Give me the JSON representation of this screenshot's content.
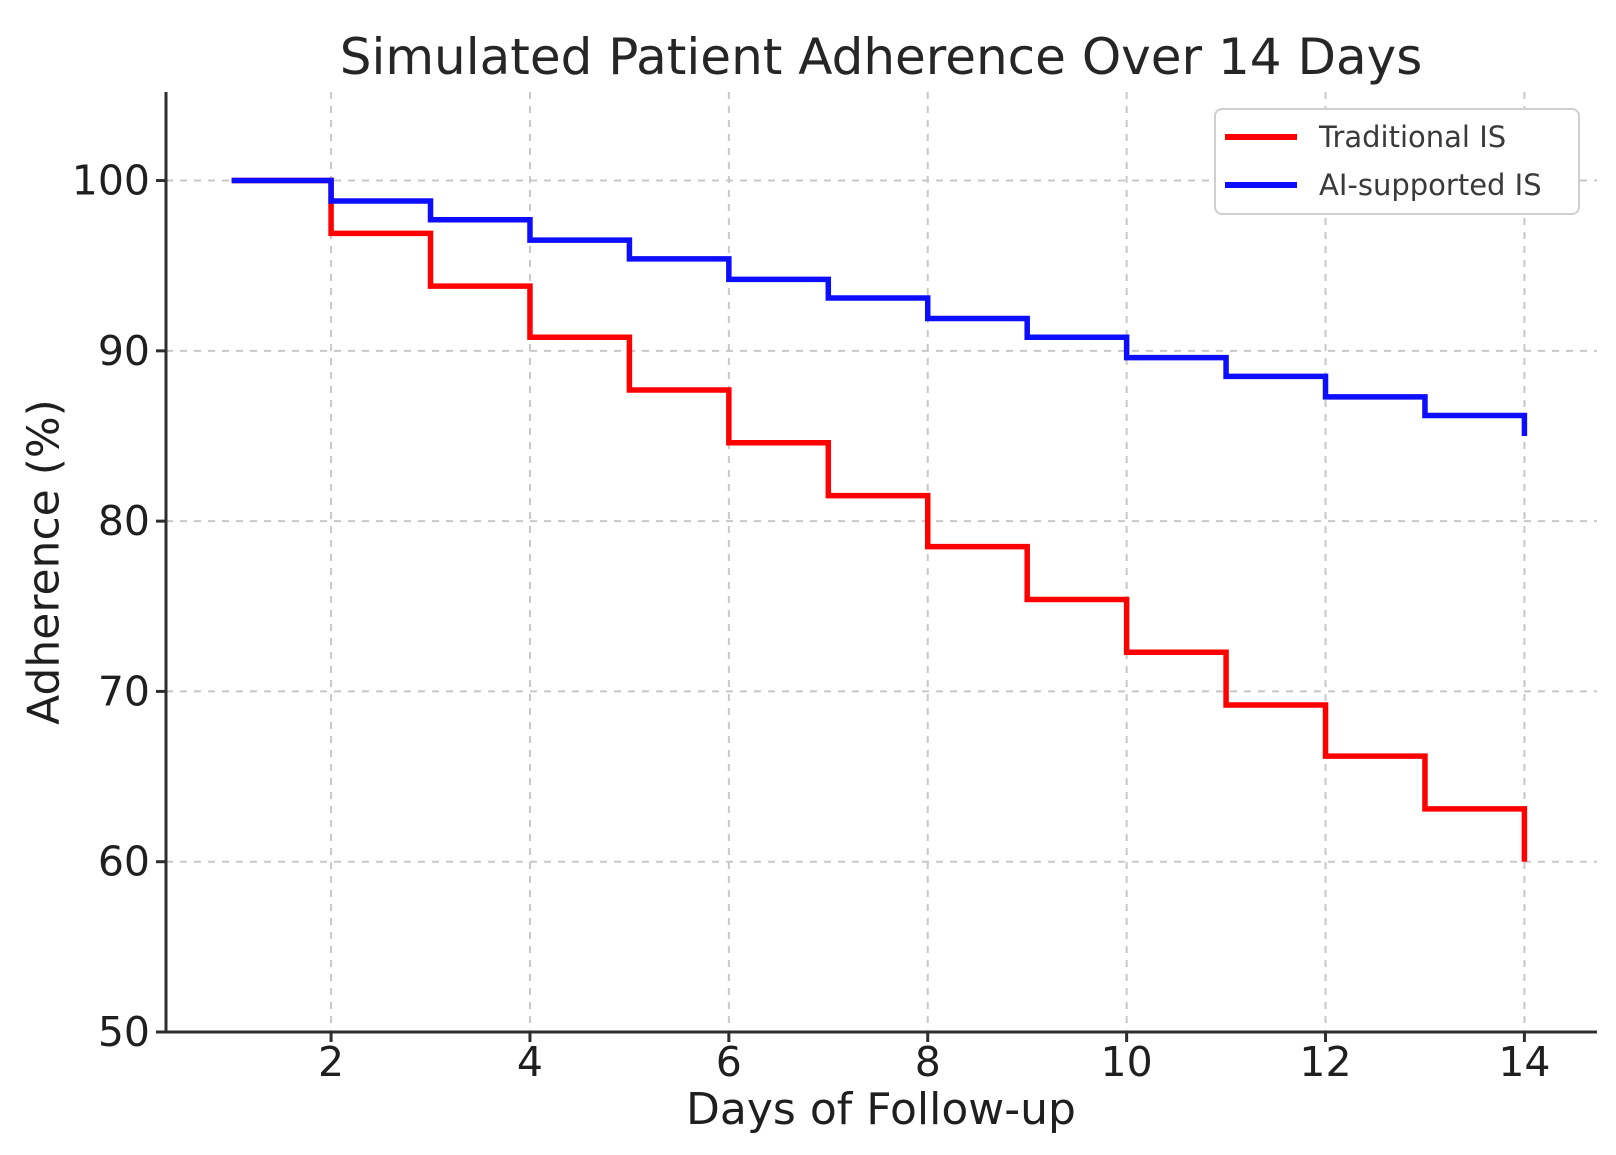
{
  "chart_data": {
    "type": "line",
    "subtype": "step-post",
    "title": "Simulated Patient Adherence Over 14 Days",
    "xlabel": "Days of Follow-up",
    "ylabel": "Adherence (%)",
    "x": [
      1,
      2,
      3,
      4,
      5,
      6,
      7,
      8,
      9,
      10,
      11,
      12,
      13,
      14
    ],
    "series": [
      {
        "name": "Traditional IS",
        "color": "#ff0000",
        "values": [
          100.0,
          96.9,
          93.8,
          90.8,
          87.7,
          84.6,
          81.5,
          78.5,
          75.4,
          72.3,
          69.2,
          66.2,
          63.1,
          60.0
        ]
      },
      {
        "name": "AI-supported IS",
        "color": "#0d0dff",
        "values": [
          100.0,
          98.8,
          97.7,
          96.5,
          95.4,
          94.2,
          93.1,
          91.9,
          90.8,
          89.6,
          88.5,
          87.3,
          86.2,
          85.0
        ]
      }
    ],
    "xticks": [
      2,
      4,
      6,
      8,
      10,
      12,
      14
    ],
    "yticks": [
      50,
      60,
      70,
      80,
      90,
      100
    ],
    "xlim": [
      0.34,
      14.73
    ],
    "ylim": [
      50,
      105.2
    ],
    "grid": true,
    "grid_style": "dashed",
    "legend_position": "upper right"
  },
  "style_colors": {
    "spine": "#2e2e2e",
    "grid": "#c8c8c8",
    "tick_label": "#1f1f1f",
    "title": "#262626",
    "legend_border": "#cfcfcf",
    "background": "#ffffff"
  }
}
